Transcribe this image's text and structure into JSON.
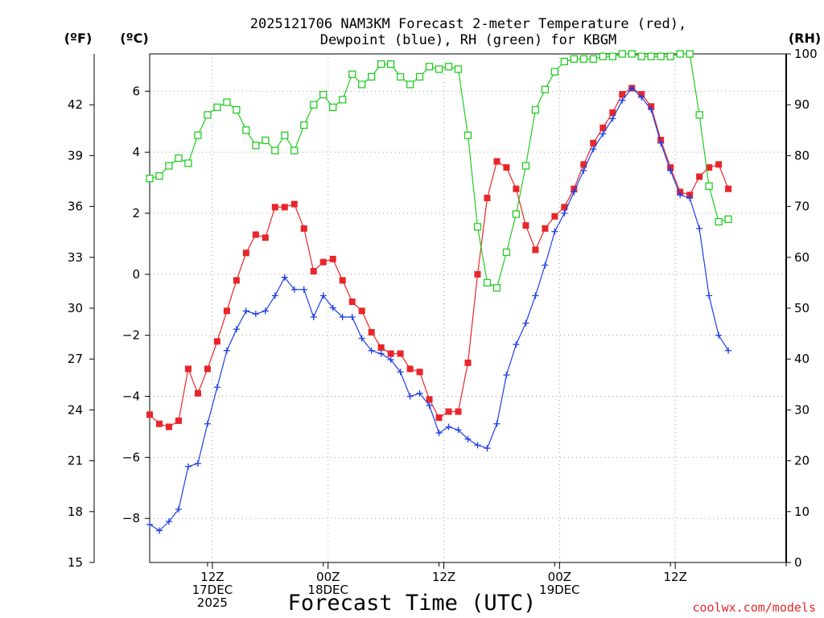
{
  "chart_data": {
    "type": "line",
    "title_lines": [
      "2025121706 NAM3KM Forecast 2-meter Temperature (red),",
      "Dewpoint (blue), RH (green) for KBGM"
    ],
    "xlabel": "Forecast Time (UTC)",
    "credit": "coolwx.com/models",
    "y_units": {
      "fahrenheit": "(ºF)",
      "celsius": "(ºC)",
      "rh": "(RH)"
    },
    "x_hours_range": [
      0,
      66
    ],
    "ylim_celsius": [
      -9.444,
      7.222
    ],
    "ylim_fahrenheit": [
      15,
      45
    ],
    "ylim_rh": [
      0,
      100
    ],
    "grid": true,
    "fahrenheit_ticks": [
      "15",
      "18",
      "21",
      "24",
      "27",
      "30",
      "33",
      "36",
      "39",
      "42"
    ],
    "fahrenheit_tick_values": [
      15,
      18,
      21,
      24,
      27,
      30,
      33,
      36,
      39,
      42
    ],
    "celsius_ticks": [
      "−8",
      "−6",
      "−4",
      "−2",
      "0",
      "2",
      "4",
      "6"
    ],
    "celsius_tick_values": [
      -8,
      -6,
      -4,
      -2,
      0,
      2,
      4,
      6
    ],
    "rh_ticks": [
      "0",
      "10",
      "20",
      "30",
      "40",
      "50",
      "60",
      "70",
      "80",
      "90",
      "100"
    ],
    "rh_tick_values": [
      0,
      10,
      20,
      30,
      40,
      50,
      60,
      70,
      80,
      90,
      100
    ],
    "x_tick_hours": [
      6,
      18,
      30,
      42,
      54,
      66
    ],
    "x_ticks": [
      {
        "hour": 6.5,
        "lines": [
          "12Z",
          "17DEC",
          "2025"
        ]
      },
      {
        "hour": 18.5,
        "lines": [
          "00Z",
          "18DEC"
        ]
      },
      {
        "hour": 30.5,
        "lines": [
          "12Z"
        ]
      },
      {
        "hour": 42.5,
        "lines": [
          "00Z",
          "19DEC"
        ]
      },
      {
        "hour": 54.5,
        "lines": [
          "12Z"
        ]
      }
    ],
    "series": [
      {
        "name": "Temperature (red)",
        "unit": "celsius",
        "color": "#e8262a",
        "marker": "filled-square",
        "x": [
          0,
          1,
          2,
          3,
          4,
          5,
          6,
          7,
          8,
          9,
          10,
          11,
          12,
          13,
          14,
          15,
          16,
          17,
          18,
          19,
          20,
          21,
          22,
          23,
          24,
          25,
          26,
          27,
          28,
          29,
          30,
          31,
          32,
          33,
          34,
          35,
          36,
          37,
          38,
          39,
          40,
          41,
          42,
          43,
          44,
          45,
          46,
          47,
          48,
          49,
          50,
          51,
          52,
          53,
          54,
          55,
          56,
          57,
          58,
          59,
          60
        ],
        "values": [
          -4.6,
          -4.9,
          -5.0,
          -4.8,
          -3.1,
          -3.9,
          -3.1,
          -2.2,
          -1.2,
          -0.2,
          0.7,
          1.3,
          1.2,
          2.2,
          2.2,
          2.3,
          1.5,
          0.1,
          0.4,
          0.5,
          -0.2,
          -0.9,
          -1.2,
          -1.9,
          -2.4,
          -2.6,
          -2.6,
          -3.1,
          -3.2,
          -4.1,
          -4.7,
          -4.5,
          -4.5,
          -2.9,
          0.0,
          2.5,
          3.7,
          3.5,
          2.8,
          1.6,
          0.8,
          1.5,
          1.9,
          2.2,
          2.8,
          3.6,
          4.3,
          4.8,
          5.3,
          5.9,
          6.1,
          5.9,
          5.5,
          4.4,
          3.5,
          2.7,
          2.6,
          3.2,
          3.5,
          3.6,
          2.8
        ]
      },
      {
        "name": "Dewpoint (blue)",
        "unit": "celsius",
        "color": "#1e3ee8",
        "marker": "plus",
        "x": [
          0,
          1,
          2,
          3,
          4,
          5,
          6,
          7,
          8,
          9,
          10,
          11,
          12,
          13,
          14,
          15,
          16,
          17,
          18,
          19,
          20,
          21,
          22,
          23,
          24,
          25,
          26,
          27,
          28,
          29,
          30,
          31,
          32,
          33,
          34,
          35,
          36,
          37,
          38,
          39,
          40,
          41,
          42,
          43,
          44,
          45,
          46,
          47,
          48,
          49,
          50,
          51,
          52,
          53,
          54,
          55,
          56,
          57,
          58,
          59,
          60
        ],
        "values": [
          -8.2,
          -8.4,
          -8.1,
          -7.7,
          -6.3,
          -6.2,
          -4.9,
          -3.7,
          -2.5,
          -1.8,
          -1.2,
          -1.3,
          -1.2,
          -0.7,
          -0.1,
          -0.5,
          -0.5,
          -1.4,
          -0.7,
          -1.1,
          -1.4,
          -1.4,
          -2.1,
          -2.5,
          -2.6,
          -2.8,
          -3.2,
          -4.0,
          -3.9,
          -4.3,
          -5.2,
          -5.0,
          -5.1,
          -5.4,
          -5.6,
          -5.7,
          -4.9,
          -3.3,
          -2.3,
          -1.6,
          -0.7,
          0.3,
          1.4,
          2.0,
          2.7,
          3.4,
          4.1,
          4.6,
          5.1,
          5.7,
          6.1,
          5.8,
          5.4,
          4.3,
          3.4,
          2.6,
          2.5,
          1.5,
          -0.7,
          -2.0,
          -2.5
        ]
      },
      {
        "name": "RH (green)",
        "unit": "rh",
        "color": "#22cc22",
        "marker": "open-square",
        "x": [
          0,
          1,
          2,
          3,
          4,
          5,
          6,
          7,
          8,
          9,
          10,
          11,
          12,
          13,
          14,
          15,
          16,
          17,
          18,
          19,
          20,
          21,
          22,
          23,
          24,
          25,
          26,
          27,
          28,
          29,
          30,
          31,
          32,
          33,
          34,
          35,
          36,
          37,
          38,
          39,
          40,
          41,
          42,
          43,
          44,
          45,
          46,
          47,
          48,
          49,
          50,
          51,
          52,
          53,
          54,
          55,
          56,
          57,
          58,
          59,
          60
        ],
        "values": [
          75.5,
          76,
          78,
          79.5,
          78.5,
          84,
          88,
          89.5,
          90.5,
          89,
          85,
          82,
          83,
          81,
          84,
          81,
          86,
          90,
          92,
          89.5,
          91,
          96,
          94,
          95.5,
          98,
          98,
          95.5,
          94,
          95.5,
          97.5,
          97,
          97.5,
          97,
          84,
          66,
          55,
          54,
          61,
          68.5,
          78,
          89,
          93,
          96.5,
          98.5,
          99,
          99,
          99,
          99.5,
          99.5,
          100,
          100,
          99.5,
          99.5,
          99.5,
          99.5,
          100,
          100,
          88,
          74,
          67,
          67.5
        ]
      }
    ]
  }
}
